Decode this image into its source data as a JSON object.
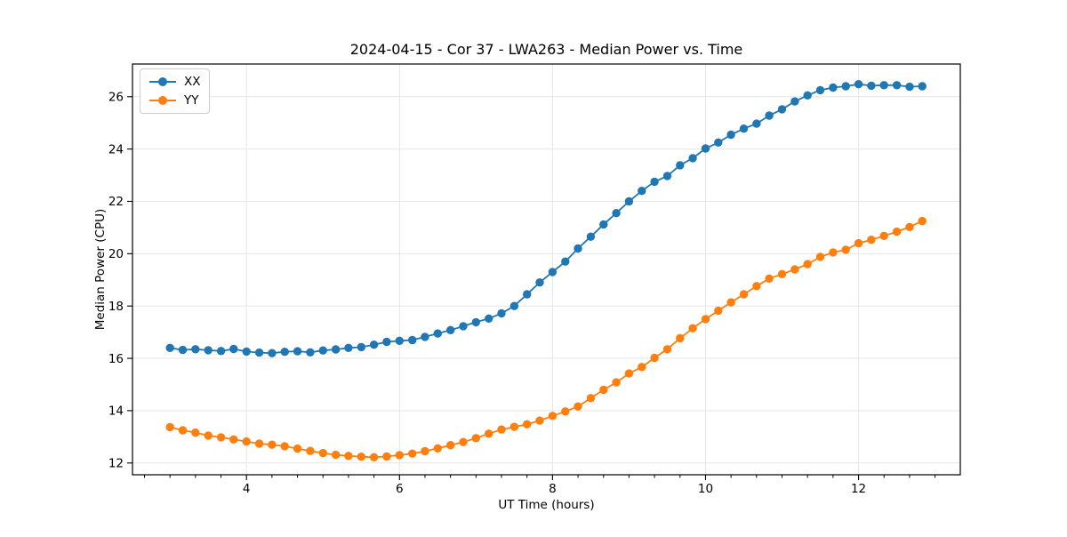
{
  "chart_data": {
    "type": "line",
    "title": "2024-04-15 - Cor 37 - LWA263 - Median Power vs. Time",
    "xlabel": "UT Time (hours)",
    "ylabel": "Median Power (CPU)",
    "xlim": [
      2.51,
      13.33
    ],
    "ylim": [
      11.55,
      27.25
    ],
    "xticks": [
      4,
      6,
      8,
      10,
      12
    ],
    "yticks": [
      12,
      14,
      16,
      18,
      20,
      22,
      24,
      26
    ],
    "x_minor_step": 0.3333,
    "grid": true,
    "grid_color": "#e6e6e6",
    "legend_position": "upper left",
    "x": [
      3.0,
      3.167,
      3.333,
      3.5,
      3.667,
      3.833,
      4.0,
      4.167,
      4.333,
      4.5,
      4.667,
      4.833,
      5.0,
      5.167,
      5.333,
      5.5,
      5.667,
      5.833,
      6.0,
      6.167,
      6.333,
      6.5,
      6.667,
      6.833,
      7.0,
      7.167,
      7.333,
      7.5,
      7.667,
      7.833,
      8.0,
      8.167,
      8.333,
      8.5,
      8.667,
      8.833,
      9.0,
      9.167,
      9.333,
      9.5,
      9.667,
      9.833,
      10.0,
      10.167,
      10.333,
      10.5,
      10.667,
      10.833,
      11.0,
      11.167,
      11.333,
      11.5,
      11.667,
      11.833,
      12.0,
      12.167,
      12.333,
      12.5,
      12.667,
      12.833
    ],
    "series": [
      {
        "name": "XX",
        "color": "#1f77b4",
        "values": [
          16.4,
          16.32,
          16.35,
          16.31,
          16.28,
          16.36,
          16.26,
          16.22,
          16.2,
          16.25,
          16.27,
          16.23,
          16.3,
          16.34,
          16.4,
          16.43,
          16.52,
          16.63,
          16.67,
          16.7,
          16.82,
          16.95,
          17.08,
          17.23,
          17.38,
          17.52,
          17.72,
          18.0,
          18.45,
          18.9,
          19.3,
          19.7,
          20.2,
          20.65,
          21.12,
          21.55,
          22.0,
          22.4,
          22.75,
          22.97,
          23.38,
          23.65,
          24.02,
          24.25,
          24.55,
          24.78,
          24.97,
          25.28,
          25.52,
          25.82,
          26.05,
          26.25,
          26.35,
          26.4,
          26.48,
          26.42,
          26.44,
          26.44,
          26.38,
          26.4
        ]
      },
      {
        "name": "YY",
        "color": "#ff7f0e",
        "values": [
          13.37,
          13.25,
          13.16,
          13.05,
          12.98,
          12.9,
          12.82,
          12.74,
          12.7,
          12.64,
          12.55,
          12.46,
          12.38,
          12.31,
          12.27,
          12.24,
          12.22,
          12.25,
          12.3,
          12.36,
          12.45,
          12.56,
          12.68,
          12.8,
          12.95,
          13.12,
          13.28,
          13.38,
          13.48,
          13.62,
          13.8,
          13.97,
          14.16,
          14.48,
          14.8,
          15.08,
          15.42,
          15.67,
          16.02,
          16.35,
          16.77,
          17.15,
          17.5,
          17.82,
          18.14,
          18.45,
          18.76,
          19.05,
          19.22,
          19.4,
          19.6,
          19.88,
          20.05,
          20.15,
          20.4,
          20.53,
          20.68,
          20.84,
          21.02,
          21.25
        ]
      }
    ]
  },
  "style": {
    "spine_color": "#000000",
    "background": "#ffffff",
    "marker_radius": 4.7,
    "line_width": 1.8
  }
}
